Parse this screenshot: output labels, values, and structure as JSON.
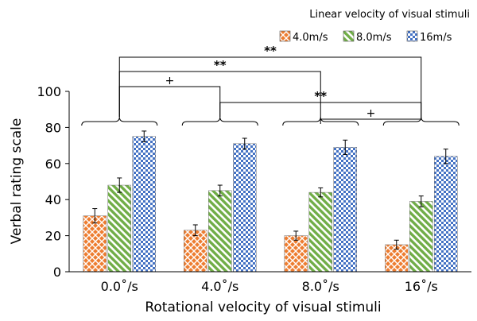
{
  "chart_data": {
    "type": "bar",
    "title": "",
    "xlabel": "Rotational velocity of visual stimuli",
    "ylabel": "Verbal rating scale",
    "ylim": [
      0,
      100
    ],
    "yticks": [
      0,
      20,
      40,
      60,
      80,
      100
    ],
    "categories": [
      "0.0˚/s",
      "4.0˚/s",
      "8.0˚/s",
      "16˚/s"
    ],
    "legend_title": "Linear velocity of visual stimuli",
    "legend_position": "top-right",
    "grid": false,
    "series": [
      {
        "name": "4.0m/s",
        "pattern": "crosshatch",
        "color": "#ed7d31",
        "values": [
          31,
          23,
          20,
          15
        ],
        "errors": [
          4,
          3,
          2.5,
          2.5
        ]
      },
      {
        "name": "8.0m/s",
        "pattern": "diagonal-stripe",
        "color": "#70ad47",
        "values": [
          48,
          45,
          44,
          39
        ],
        "errors": [
          4,
          3,
          2.5,
          3
        ]
      },
      {
        "name": "16m/s",
        "pattern": "checkerboard",
        "color": "#4472c4",
        "values": [
          75,
          71,
          69,
          64
        ],
        "errors": [
          3,
          3,
          4,
          4
        ]
      }
    ],
    "significance": [
      {
        "label": "**",
        "from": 0,
        "to": 3
      },
      {
        "label": "**",
        "from": 0,
        "to": 2
      },
      {
        "label": "+",
        "from": 0,
        "to": 1
      },
      {
        "label": "**",
        "from": 1,
        "to": 3
      },
      {
        "label": "+",
        "from": 2,
        "to": 3
      }
    ]
  }
}
